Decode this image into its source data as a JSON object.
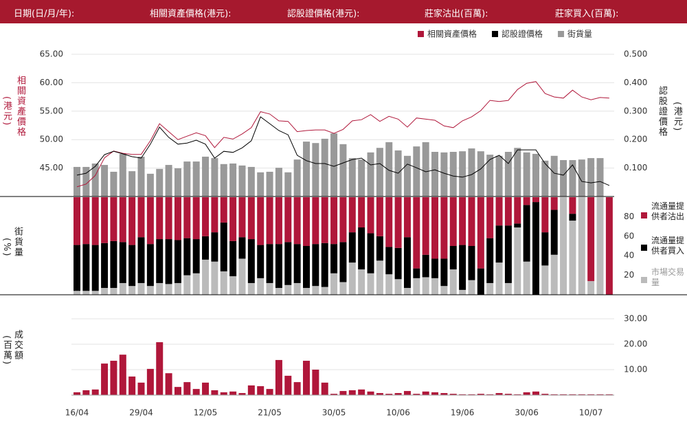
{
  "header": [
    "日期(日/月/年):",
    "相關資產價格(港元):",
    "認股證價格(港元):",
    "莊家沽出(百萬):",
    "莊家買入(百萬):"
  ],
  "chart_data": [
    {
      "type": "combo",
      "y_label": "相關資產價格",
      "y_label_unit": "(港元)",
      "y2_label": "認股證價格",
      "y2_label_unit": "(港元)",
      "ylim": [
        40,
        65
      ],
      "yticks": [
        {
          "value": 45,
          "label": "45.00"
        },
        {
          "value": 50,
          "label": "50.00"
        },
        {
          "value": 55,
          "label": "55.00"
        },
        {
          "value": 60,
          "label": "60.00"
        },
        {
          "value": 65,
          "label": "65.00"
        }
      ],
      "y2lim": [
        0,
        0.5
      ],
      "y2ticks": [
        {
          "value": 0.1,
          "label": "0.100"
        },
        {
          "value": 0.2,
          "label": "0.200"
        },
        {
          "value": 0.3,
          "label": "0.300"
        },
        {
          "value": 0.4,
          "label": "0.400"
        },
        {
          "value": 0.5,
          "label": "0.500"
        }
      ],
      "grid": true,
      "series": [
        {
          "name": "相關資產價格",
          "color": "#b0173a",
          "mark": "line",
          "axis": "y",
          "values": [
            41.7,
            42.2,
            43.7,
            46.8,
            48.0,
            47.6,
            47.4,
            47.4,
            49.8,
            52.8,
            51.4,
            50.0,
            50.6,
            51.2,
            50.7,
            48.6,
            50.4,
            50.1,
            51.0,
            52.1,
            54.9,
            54.5,
            53.3,
            53.2,
            51.4,
            51.6,
            51.7,
            51.7,
            51.1,
            51.8,
            53.3,
            53.5,
            54.4,
            53.2,
            54.1,
            53.6,
            52.2,
            53.8,
            53.6,
            53.4,
            52.4,
            52.1,
            53.3,
            54.0,
            55.1,
            56.9,
            56.7,
            56.9,
            58.8,
            59.9,
            60.2,
            58.1,
            57.5,
            57.3,
            58.7,
            57.5,
            57.0,
            57.4,
            57.3
          ]
        },
        {
          "name": "認股證價格",
          "color": "#000000",
          "mark": "line",
          "axis": "y2",
          "values": [
            0.075,
            0.082,
            0.106,
            0.147,
            0.159,
            0.15,
            0.14,
            0.135,
            0.184,
            0.244,
            0.208,
            0.184,
            0.188,
            0.198,
            0.184,
            0.135,
            0.159,
            0.155,
            0.171,
            0.196,
            0.28,
            0.256,
            0.232,
            0.217,
            0.145,
            0.126,
            0.116,
            0.116,
            0.106,
            0.118,
            0.13,
            0.135,
            0.111,
            0.116,
            0.092,
            0.082,
            0.114,
            0.101,
            0.087,
            0.094,
            0.082,
            0.072,
            0.068,
            0.077,
            0.097,
            0.13,
            0.145,
            0.116,
            0.164,
            0.164,
            0.164,
            0.116,
            0.082,
            0.075,
            0.111,
            0.053,
            0.048,
            0.053,
            0.039
          ]
        },
        {
          "name": "街貨量",
          "color": "#999999",
          "mark": "bar",
          "axis": "y2",
          "values": [
            0.104,
            0.104,
            0.116,
            0.111,
            0.087,
            0.15,
            0.089,
            0.14,
            0.08,
            0.097,
            0.111,
            0.099,
            0.123,
            0.123,
            0.14,
            0.135,
            0.114,
            0.116,
            0.109,
            0.104,
            0.085,
            0.087,
            0.101,
            0.085,
            0.13,
            0.193,
            0.188,
            0.203,
            0.222,
            0.184,
            0.135,
            0.13,
            0.155,
            0.171,
            0.191,
            0.162,
            0.143,
            0.176,
            0.191,
            0.157,
            0.155,
            0.157,
            0.159,
            0.169,
            0.159,
            0.147,
            0.143,
            0.157,
            0.171,
            0.155,
            0.15,
            0.126,
            0.143,
            0.128,
            0.128,
            0.13,
            0.135,
            0.135,
            null
          ]
        }
      ]
    },
    {
      "type": "stacked_bar",
      "y_label": "街貨量",
      "y_label_unit": "(%)",
      "ylim": [
        0,
        100
      ],
      "yticks": [
        20,
        40,
        60,
        80
      ],
      "series": [
        {
          "name": "市場交易量",
          "color": "#bbbbbb",
          "values": [
            4,
            4,
            4,
            7,
            7,
            12,
            9,
            12,
            9,
            12,
            11,
            12,
            20,
            22,
            36,
            34,
            24,
            19,
            37,
            12,
            17,
            12,
            7,
            10,
            12,
            7,
            9,
            8,
            22,
            13,
            33,
            26,
            22,
            35,
            21,
            16,
            7,
            17,
            18,
            17,
            9,
            26,
            5,
            15,
            0,
            12,
            33,
            12,
            69,
            34,
            0,
            30,
            41,
            100,
            76,
            100,
            14,
            100,
            0
          ]
        },
        {
          "name": "流通量提供者買入",
          "color": "#000000",
          "values": [
            47,
            48,
            47,
            46,
            48,
            42,
            42,
            47,
            43,
            45,
            46,
            44,
            38,
            35,
            24,
            30,
            50,
            36,
            22,
            45,
            34,
            40,
            45,
            44,
            40,
            43,
            43,
            45,
            30,
            41,
            31,
            43,
            41,
            25,
            28,
            32,
            52,
            10,
            23,
            20,
            28,
            24,
            46,
            35,
            27,
            46,
            38,
            59,
            4,
            58,
            95,
            34,
            46,
            0,
            7,
            0,
            0,
            0,
            0
          ]
        },
        {
          "name": "流通量提供者沽出",
          "color": "#b0173a",
          "values": [
            49,
            48,
            49,
            47,
            45,
            46,
            49,
            41,
            48,
            43,
            43,
            44,
            42,
            43,
            40,
            36,
            26,
            45,
            41,
            43,
            49,
            48,
            48,
            46,
            48,
            50,
            48,
            47,
            48,
            46,
            36,
            31,
            37,
            40,
            51,
            52,
            41,
            73,
            59,
            63,
            63,
            50,
            49,
            50,
            73,
            42,
            29,
            29,
            27,
            8,
            5,
            36,
            13,
            0,
            17,
            0,
            86,
            0,
            100
          ]
        }
      ]
    },
    {
      "type": "bar",
      "y_label": "成交額",
      "y_label_unit": "(百萬)",
      "color": "#b0173a",
      "ylim": [
        0,
        30
      ],
      "yticks": [
        {
          "value": 10,
          "label": "10.00"
        },
        {
          "value": 20,
          "label": "20.00"
        },
        {
          "value": 30,
          "label": "30.00"
        }
      ],
      "grid": true,
      "categories": [
        "16/04",
        null,
        null,
        null,
        null,
        null,
        null,
        "29/04",
        null,
        null,
        null,
        null,
        null,
        null,
        "12/05",
        null,
        null,
        null,
        null,
        null,
        null,
        "21/05",
        null,
        null,
        null,
        null,
        null,
        null,
        "30/05",
        null,
        null,
        null,
        null,
        null,
        null,
        "10/06",
        null,
        null,
        null,
        null,
        null,
        null,
        "19/06",
        null,
        null,
        null,
        null,
        null,
        null,
        "30/06",
        null,
        null,
        null,
        null,
        null,
        null,
        "10/07",
        null,
        null
      ],
      "values": [
        1.1,
        1.9,
        2.2,
        12.4,
        13.5,
        15.9,
        7.3,
        4.9,
        10.3,
        20.8,
        8.6,
        3.2,
        5.1,
        2.4,
        4.9,
        1.9,
        1.1,
        1.4,
        0.8,
        3.8,
        3.5,
        2.4,
        13.8,
        7.6,
        5.1,
        13.5,
        10.0,
        4.9,
        0.5,
        1.6,
        1.9,
        2.2,
        1.4,
        0.8,
        0.5,
        0.8,
        1.6,
        0.5,
        1.4,
        1.1,
        0.8,
        0.5,
        0.3,
        0.3,
        0.5,
        0.3,
        0.8,
        0.5,
        0.3,
        1.1,
        1.4,
        0.5,
        0.3,
        0.3,
        0.3,
        0.3,
        0.3,
        0.3,
        0.3
      ]
    }
  ]
}
